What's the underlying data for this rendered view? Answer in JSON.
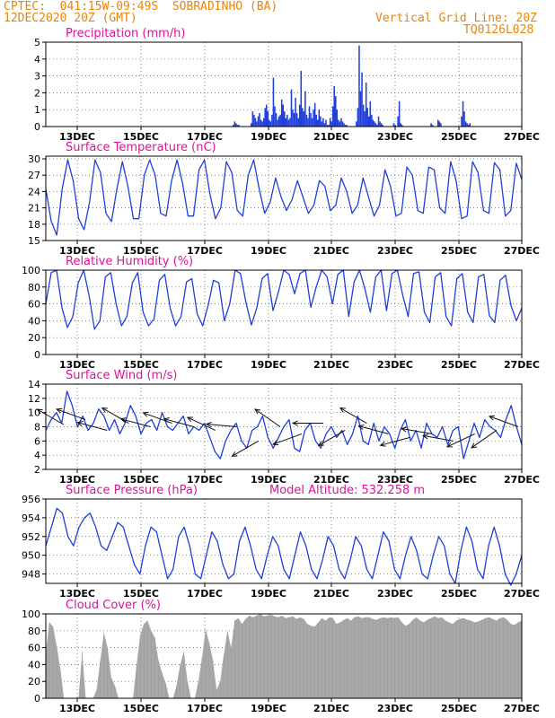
{
  "header": {
    "line1_left": "CPTEC:  041:15W-09:49S  SOBRADINHO (BA)",
    "line2_left": "12DEC2020 20Z (GMT)",
    "line1_right": "Vertical Grid Line: 20Z",
    "line2_right": "TQ0126L028"
  },
  "colors": {
    "header_text": "#e8860a",
    "panel_title": "#e0119a",
    "line": "#1f3fdc",
    "bars": "#1f3fdc",
    "cloud": "#a8a8a8"
  },
  "x_axis": {
    "tick_labels": [
      "13DEC",
      "15DEC",
      "17DEC",
      "19DEC",
      "21DEC",
      "23DEC",
      "25DEC",
      "27DEC"
    ]
  },
  "chart_data": [
    {
      "id": "precip",
      "type": "bar",
      "title": "Precipitation (mm/h)",
      "ylim": [
        0,
        5
      ],
      "yticks": [
        0,
        1,
        2,
        3,
        4,
        5
      ],
      "grid": true,
      "series": [
        {
          "values": [
            0,
            0,
            0,
            0,
            0,
            0,
            0,
            0,
            0,
            0,
            0,
            0,
            0,
            0,
            0,
            0,
            0,
            0,
            0,
            0,
            0,
            0,
            0,
            0,
            0,
            0,
            0,
            0,
            0,
            0,
            0,
            0,
            0,
            0,
            0,
            0,
            0,
            0,
            0,
            0,
            0,
            0,
            0,
            0,
            0,
            0,
            0,
            0,
            0,
            0,
            0,
            0,
            0,
            0,
            0,
            0,
            0,
            0,
            0,
            0,
            0,
            0,
            0,
            0,
            0,
            0,
            0,
            0,
            0,
            0,
            0,
            0,
            0,
            0,
            0,
            0,
            0,
            0,
            0,
            0,
            0,
            0,
            0,
            0,
            0,
            0,
            0,
            0,
            0,
            0,
            0,
            0,
            0,
            0,
            0,
            0,
            0,
            0,
            0,
            0,
            0,
            0,
            0,
            0,
            0,
            0,
            0,
            0,
            0,
            0,
            0,
            0,
            0,
            0,
            0,
            0,
            0,
            0,
            0,
            0,
            0,
            0,
            0,
            0,
            0,
            0,
            0,
            0,
            0,
            0,
            0,
            0,
            0,
            0,
            0,
            0.1,
            0.3,
            0.2,
            0.1,
            0.1,
            0,
            0,
            0,
            0,
            0,
            0,
            0,
            0,
            0.2,
            0.9,
            0.7,
            0.5,
            0.3,
            0.6,
            0.8,
            0.4,
            0.3,
            0.5,
            1.1,
            1.3,
            0.9,
            0.4,
            0.3,
            0.7,
            2.9,
            1.2,
            0.8,
            0.4,
            0.6,
            0.7,
            1.6,
            1.3,
            0.9,
            0.5,
            0.7,
            0.4,
            0.5,
            2.2,
            1.0,
            0.8,
            1.7,
            0.8,
            0.5,
            1.3,
            3.3,
            1.1,
            0.9,
            2.1,
            0.7,
            0.5,
            1.2,
            0.8,
            0.5,
            1.0,
            1.4,
            0.7,
            0.4,
            1.0,
            0.6,
            0.3,
            0.5,
            0.2,
            0.4,
            0.1,
            0.1,
            0.5,
            0.3,
            1.2,
            2.4,
            1.8,
            1.0,
            0.4,
            0.3,
            0.5,
            0.3,
            0.2,
            0.1,
            0.1,
            0,
            0,
            0,
            0,
            0,
            0,
            0.3,
            1.1,
            4.8,
            2.1,
            3.2,
            1.3,
            0.9,
            2.6,
            1.1,
            0.6,
            1.5,
            0.7,
            0.4,
            0.3,
            0.2,
            0.1,
            0.6,
            0.3,
            0.2,
            0.1,
            0,
            0,
            0,
            0,
            0,
            0,
            0,
            0.2,
            0.1,
            0,
            0.6,
            1.5,
            0.2,
            0.1,
            0,
            0,
            0,
            0,
            0,
            0,
            0,
            0,
            0,
            0,
            0,
            0,
            0,
            0,
            0,
            0,
            0,
            0,
            0,
            0,
            0.2,
            0.1,
            0,
            0,
            0,
            0.4,
            0.3,
            0.2,
            0,
            0,
            0,
            0,
            0,
            0,
            0,
            0,
            0,
            0,
            0,
            0,
            0,
            0,
            0.6,
            1.5,
            0.9,
            0.3,
            0.2,
            0.1,
            0.2,
            0,
            0,
            0,
            0,
            0,
            0,
            0,
            0,
            0,
            0,
            0,
            0,
            0,
            0,
            0,
            0,
            0,
            0,
            0,
            0,
            0,
            0,
            0,
            0,
            0,
            0,
            0,
            0,
            0,
            0,
            0,
            0,
            0,
            0,
            0,
            0,
            0
          ]
        }
      ]
    },
    {
      "id": "temp",
      "type": "line",
      "title": "Surface Temperature (nC)",
      "ylim": [
        15,
        30.5
      ],
      "yticks": [
        15,
        18,
        21,
        24,
        27,
        30
      ],
      "grid": true,
      "series": [
        {
          "values": [
            24.5,
            18.5,
            16,
            24.5,
            29.8,
            26,
            19,
            17,
            22,
            29.8,
            27.5,
            20,
            18.5,
            24.5,
            29.5,
            25,
            19,
            19,
            27,
            29.8,
            27,
            20,
            19.5,
            26,
            29.8,
            25.5,
            19.5,
            19.5,
            28,
            29.8,
            23.5,
            19,
            21,
            29.5,
            27.5,
            20.5,
            19.5,
            27,
            29.8,
            24.5,
            20,
            22,
            26.5,
            23,
            20.5,
            22.5,
            26,
            23,
            20,
            21.5,
            26,
            25,
            20.5,
            21.5,
            26.5,
            24,
            20,
            21.5,
            26.5,
            23,
            19.5,
            21.5,
            28,
            25,
            19.5,
            20,
            28.5,
            27,
            20.5,
            20,
            28.5,
            28,
            21,
            20,
            29.5,
            26,
            19,
            19.5,
            29.5,
            27.5,
            20.5,
            20,
            29.3,
            28,
            19.5,
            20.5,
            29.2,
            26.2
          ]
        }
      ]
    },
    {
      "id": "rh",
      "type": "line",
      "title": "Relative Humidity (%)",
      "ylim": [
        0,
        100
      ],
      "yticks": [
        0,
        20,
        40,
        60,
        80,
        100
      ],
      "grid": true,
      "series": [
        {
          "values": [
            60,
            97,
            100,
            55,
            32,
            45,
            85,
            100,
            70,
            30,
            40,
            92,
            97,
            60,
            34,
            45,
            85,
            97,
            50,
            34,
            42,
            88,
            95,
            55,
            34,
            45,
            86,
            90,
            48,
            34,
            58,
            88,
            85,
            40,
            60,
            100,
            96,
            62,
            35,
            55,
            90,
            96,
            52,
            74,
            100,
            95,
            72,
            96,
            100,
            56,
            80,
            100,
            92,
            60,
            95,
            100,
            45,
            86,
            100,
            78,
            50,
            92,
            100,
            52,
            96,
            100,
            70,
            45,
            96,
            98,
            50,
            38,
            92,
            97,
            45,
            34,
            90,
            96,
            50,
            38,
            92,
            95,
            46,
            38,
            88,
            94,
            58,
            40,
            55
          ]
        }
      ]
    },
    {
      "id": "wind",
      "type": "line",
      "title": "Surface Wind (m/s)",
      "ylim": [
        2,
        14
      ],
      "yticks": [
        2,
        4,
        6,
        8,
        10,
        12,
        14
      ],
      "grid": true,
      "series": [
        {
          "values": [
            7.5,
            9,
            10,
            8.5,
            13,
            11,
            8,
            9.5,
            7.5,
            8.5,
            10.5,
            9.5,
            7.5,
            9,
            7,
            8.5,
            11,
            9.5,
            7,
            8.5,
            9,
            7.5,
            10,
            8,
            7.5,
            8.5,
            9.5,
            7,
            8,
            7.5,
            8.5,
            6.5,
            4.5,
            3.5,
            6,
            7.5,
            8.5,
            6,
            5,
            7.5,
            8,
            9.5,
            6.5,
            5,
            6.5,
            8,
            9,
            5,
            4.5,
            7.5,
            8.5,
            6,
            5,
            7,
            8,
            6.5,
            7.5,
            5.5,
            7,
            9.5,
            6,
            5.5,
            8.5,
            6,
            8,
            7,
            5,
            7.5,
            9,
            6,
            7.5,
            5,
            8.5,
            7,
            6.5,
            8,
            5.5,
            7.5,
            8,
            3.5,
            6,
            8.5,
            6.5,
            9,
            8,
            7.5,
            6.5,
            9,
            11,
            8,
            5.5
          ]
        }
      ],
      "vectors_speed_dir": [
        [
          8.3,
          150
        ],
        [
          9.0,
          160
        ],
        [
          7.5,
          165
        ],
        [
          8.5,
          150
        ],
        [
          8.0,
          165
        ],
        [
          8.5,
          160
        ],
        [
          8.0,
          165
        ],
        [
          7.5,
          155
        ],
        [
          8.0,
          175
        ],
        [
          6.0,
          210
        ],
        [
          8.0,
          145
        ],
        [
          7.0,
          200
        ],
        [
          8.5,
          180
        ],
        [
          7.5,
          210
        ],
        [
          8.5,
          150
        ],
        [
          7.0,
          165
        ],
        [
          6.5,
          195
        ],
        [
          7.0,
          170
        ],
        [
          6.0,
          170
        ],
        [
          7.0,
          205
        ],
        [
          7.5,
          215
        ],
        [
          8.0,
          160
        ]
      ]
    },
    {
      "id": "pres",
      "type": "line",
      "title": "Surface Pressure (hPa)",
      "annotation": "Model Altitude: 532.258 m",
      "ylim": [
        947,
        956
      ],
      "yticks": [
        948,
        950,
        952,
        954,
        956
      ],
      "grid": true,
      "series": [
        {
          "values": [
            951,
            953,
            955,
            954.5,
            952,
            951,
            953,
            954,
            954.5,
            953,
            951,
            950.5,
            952,
            953.5,
            953,
            951,
            949,
            948,
            951,
            953,
            952.5,
            950,
            947.5,
            948.5,
            952,
            953,
            951,
            948,
            947.5,
            950,
            952.5,
            951.5,
            949,
            947.5,
            948,
            951.5,
            953,
            951,
            948.5,
            947.5,
            950,
            952,
            951,
            948.5,
            947.5,
            950,
            952.5,
            951,
            948.5,
            947.5,
            949.5,
            952,
            951,
            948.5,
            947.5,
            949.5,
            952,
            951,
            948.5,
            947.5,
            950,
            952.5,
            951.5,
            948.5,
            947.5,
            950,
            952,
            950.5,
            948,
            947.5,
            950,
            952,
            951,
            948,
            947,
            950.5,
            953,
            951.5,
            948.5,
            947.5,
            951,
            953,
            951,
            948,
            946.8,
            948,
            950
          ]
        }
      ]
    },
    {
      "id": "cloud",
      "type": "area",
      "title": "Cloud Cover (%)",
      "ylim": [
        0,
        100
      ],
      "yticks": [
        0,
        20,
        40,
        60,
        80,
        100
      ],
      "grid": true,
      "series": [
        {
          "values": [
            55,
            90,
            85,
            62,
            35,
            0,
            0,
            0,
            0,
            0,
            55,
            0,
            0,
            0,
            10,
            45,
            78,
            60,
            25,
            15,
            0,
            0,
            0,
            0,
            0,
            40,
            75,
            88,
            92,
            80,
            72,
            45,
            30,
            18,
            0,
            0,
            15,
            40,
            55,
            20,
            0,
            0,
            20,
            48,
            82,
            65,
            45,
            10,
            20,
            52,
            80,
            60,
            92,
            95,
            88,
            94,
            98,
            96,
            98,
            100,
            97,
            98,
            99,
            97,
            96,
            98,
            95,
            96,
            97,
            94,
            96,
            94,
            88,
            86,
            85,
            90,
            95,
            92,
            96,
            95,
            88,
            90,
            93,
            95,
            92,
            96,
            97,
            95,
            96,
            96,
            94,
            93,
            95,
            96,
            95,
            96,
            95,
            96,
            90,
            86,
            88,
            93,
            96,
            92,
            90,
            93,
            95,
            97,
            95,
            96,
            92,
            90,
            88,
            92,
            94,
            95,
            93,
            92,
            90,
            91,
            93,
            95,
            96,
            94,
            92,
            95,
            96,
            93,
            88,
            87,
            90,
            92
          ]
        }
      ]
    }
  ]
}
